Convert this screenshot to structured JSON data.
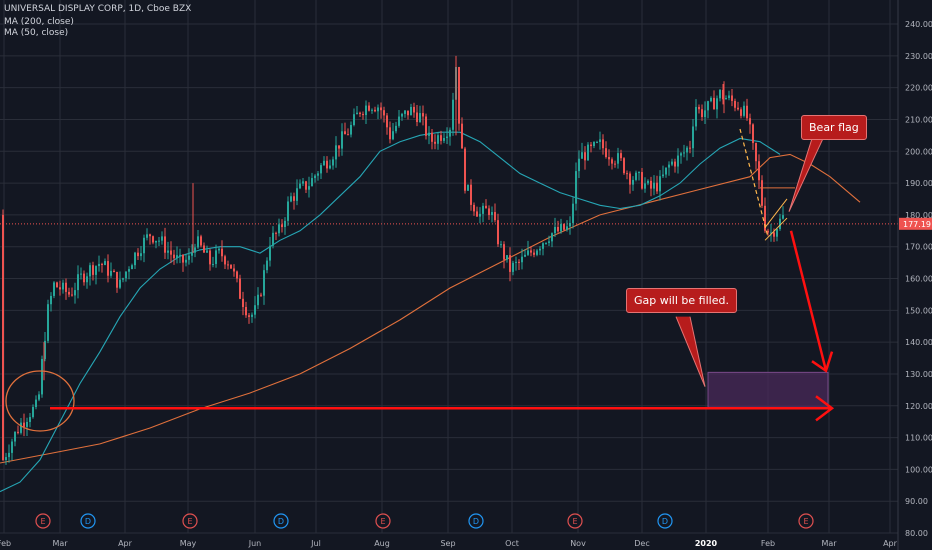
{
  "header": {
    "symbol_line": "UNIVERSAL DISPLAY CORP, 1D, Cboe BZX",
    "ma200_label": "MA (200, close)",
    "ma50_label": "MA (50, close)"
  },
  "annotations": {
    "bear_flag": "Bear flag",
    "gap": "Gap will be filled."
  },
  "colors": {
    "background": "#131722",
    "grid": "#2a2e39",
    "up": "#26a69a",
    "down": "#ef5350",
    "ma50": "#26a6b5",
    "ma200": "#e0703c",
    "arrow": "#ff1010",
    "price_tag": "#ef5350",
    "gap_box": "#4a2a5a"
  },
  "chart_data": {
    "type": "candlestick",
    "y_axis_ticks": [
      "240.00",
      "230.00",
      "220.00",
      "210.00",
      "200.00",
      "190.00",
      "180.00",
      "170.00",
      "160.00",
      "150.00",
      "140.00",
      "130.00",
      "120.00",
      "110.00",
      "100.00",
      "90.00",
      "80.00"
    ],
    "ylim": [
      80,
      244
    ],
    "x_axis_ticks": [
      "Feb",
      "Mar",
      "Apr",
      "May",
      "Jun",
      "Jul",
      "Aug",
      "Sep",
      "Oct",
      "Nov",
      "Dec",
      "2020",
      "Feb",
      "Mar",
      "Apr"
    ],
    "last_price": "177.19",
    "last_price_value": 177.19,
    "events": [
      "E",
      "D",
      "E",
      "D",
      "E",
      "D",
      "E",
      "D",
      "E"
    ],
    "gap_zone": [
      119.5,
      130.5
    ],
    "ma50_points": [
      [
        0,
        93
      ],
      [
        20,
        96
      ],
      [
        40,
        103
      ],
      [
        60,
        115
      ],
      [
        80,
        127
      ],
      [
        100,
        137
      ],
      [
        120,
        148
      ],
      [
        140,
        157
      ],
      [
        160,
        163
      ],
      [
        180,
        167
      ],
      [
        200,
        169
      ],
      [
        220,
        170
      ],
      [
        240,
        170
      ],
      [
        260,
        168
      ],
      [
        280,
        172
      ],
      [
        300,
        175
      ],
      [
        320,
        180
      ],
      [
        340,
        186
      ],
      [
        360,
        192
      ],
      [
        380,
        200
      ],
      [
        400,
        203
      ],
      [
        420,
        205
      ],
      [
        440,
        206
      ],
      [
        460,
        206
      ],
      [
        480,
        203
      ],
      [
        500,
        198
      ],
      [
        520,
        193
      ],
      [
        540,
        190
      ],
      [
        560,
        187
      ],
      [
        580,
        185
      ],
      [
        600,
        183
      ],
      [
        620,
        182
      ],
      [
        640,
        183
      ],
      [
        660,
        186
      ],
      [
        680,
        190
      ],
      [
        700,
        196
      ],
      [
        720,
        201
      ],
      [
        740,
        204
      ],
      [
        760,
        203
      ],
      [
        780,
        199
      ]
    ],
    "ma200_points": [
      [
        0,
        102
      ],
      [
        50,
        105
      ],
      [
        100,
        108
      ],
      [
        150,
        113
      ],
      [
        200,
        119
      ],
      [
        250,
        124
      ],
      [
        300,
        130
      ],
      [
        350,
        138
      ],
      [
        400,
        147
      ],
      [
        450,
        157
      ],
      [
        500,
        165
      ],
      [
        550,
        173
      ],
      [
        600,
        180
      ],
      [
        650,
        184
      ],
      [
        700,
        188
      ],
      [
        750,
        192
      ],
      [
        770,
        198
      ],
      [
        790,
        199
      ],
      [
        810,
        196
      ],
      [
        830,
        192
      ],
      [
        860,
        184
      ]
    ],
    "candle_path": [
      [
        3,
        103
      ],
      [
        10,
        108
      ],
      [
        20,
        114
      ],
      [
        30,
        118
      ],
      [
        38,
        120
      ],
      [
        44,
        140
      ],
      [
        48,
        150
      ],
      [
        54,
        158
      ],
      [
        60,
        157
      ],
      [
        70,
        155
      ],
      [
        80,
        160
      ],
      [
        90,
        163
      ],
      [
        100,
        165
      ],
      [
        110,
        162
      ],
      [
        120,
        158
      ],
      [
        130,
        165
      ],
      [
        140,
        170
      ],
      [
        150,
        174
      ],
      [
        160,
        172
      ],
      [
        170,
        168
      ],
      [
        180,
        165
      ],
      [
        190,
        166
      ],
      [
        195,
        172
      ],
      [
        200,
        170
      ],
      [
        210,
        165
      ],
      [
        220,
        168
      ],
      [
        230,
        165
      ],
      [
        240,
        155
      ],
      [
        250,
        148
      ],
      [
        256,
        150
      ],
      [
        262,
        158
      ],
      [
        270,
        172
      ],
      [
        280,
        175
      ],
      [
        290,
        185
      ],
      [
        300,
        188
      ],
      [
        310,
        190
      ],
      [
        320,
        195
      ],
      [
        330,
        198
      ],
      [
        340,
        203
      ],
      [
        350,
        207
      ],
      [
        360,
        213
      ],
      [
        370,
        215
      ],
      [
        380,
        214
      ],
      [
        390,
        205
      ],
      [
        400,
        210
      ],
      [
        410,
        213
      ],
      [
        420,
        211
      ],
      [
        430,
        203
      ],
      [
        440,
        205
      ],
      [
        450,
        208
      ],
      [
        456,
        227
      ],
      [
        460,
        205
      ],
      [
        465,
        190
      ],
      [
        470,
        185
      ],
      [
        480,
        180
      ],
      [
        490,
        182
      ],
      [
        500,
        170
      ],
      [
        510,
        163
      ],
      [
        520,
        165
      ],
      [
        530,
        168
      ],
      [
        540,
        171
      ],
      [
        550,
        174
      ],
      [
        560,
        175
      ],
      [
        570,
        176
      ],
      [
        578,
        198
      ],
      [
        590,
        200
      ],
      [
        600,
        202
      ],
      [
        610,
        199
      ],
      [
        620,
        197
      ],
      [
        630,
        192
      ],
      [
        640,
        191
      ],
      [
        650,
        188
      ],
      [
        660,
        190
      ],
      [
        670,
        196
      ],
      [
        680,
        198
      ],
      [
        690,
        202
      ],
      [
        695,
        215
      ],
      [
        700,
        212
      ],
      [
        710,
        214
      ],
      [
        720,
        218
      ],
      [
        730,
        216
      ],
      [
        740,
        214
      ],
      [
        748,
        210
      ],
      [
        752,
        202
      ],
      [
        756,
        196
      ],
      [
        760,
        188
      ],
      [
        765,
        177
      ],
      [
        770,
        174
      ],
      [
        775,
        176
      ],
      [
        780,
        178
      ],
      [
        785,
        180
      ]
    ]
  }
}
